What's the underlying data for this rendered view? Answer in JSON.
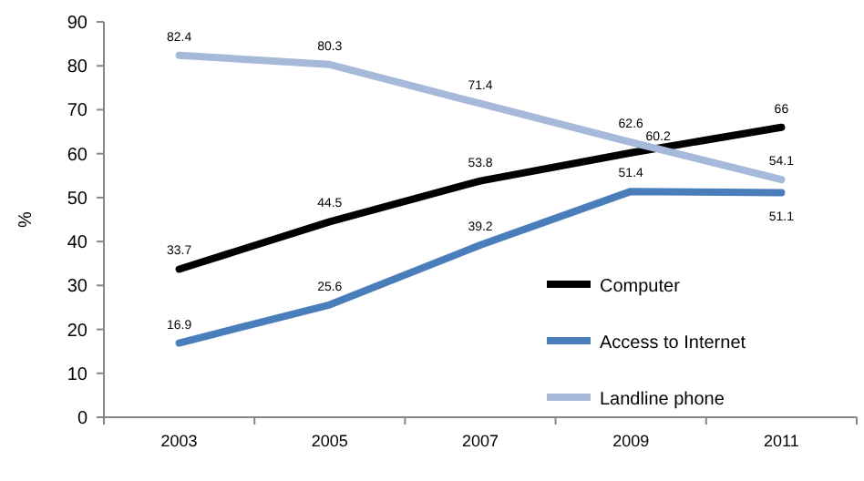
{
  "chart_data": {
    "type": "line",
    "ylabel": "%",
    "categories": [
      "2003",
      "2005",
      "2007",
      "2009",
      "2011"
    ],
    "series": [
      {
        "name": "Computer",
        "color": "#000000",
        "values": [
          33.7,
          44.5,
          53.8,
          60.2,
          66
        ]
      },
      {
        "name": "Access to Internet",
        "color": "#4a7ebb",
        "values": [
          16.9,
          25.6,
          39.2,
          51.4,
          51.1
        ]
      },
      {
        "name": "Landline phone",
        "color": "#a7b9d8",
        "values": [
          82.4,
          80.3,
          71.4,
          62.6,
          54.1
        ]
      }
    ],
    "ylim": [
      0,
      90
    ],
    "yticks": [
      0,
      10,
      20,
      30,
      40,
      50,
      60,
      70,
      80,
      90
    ],
    "grid": false,
    "legend": "right",
    "data_labels": true,
    "marker": "none",
    "line_style": "solid"
  }
}
